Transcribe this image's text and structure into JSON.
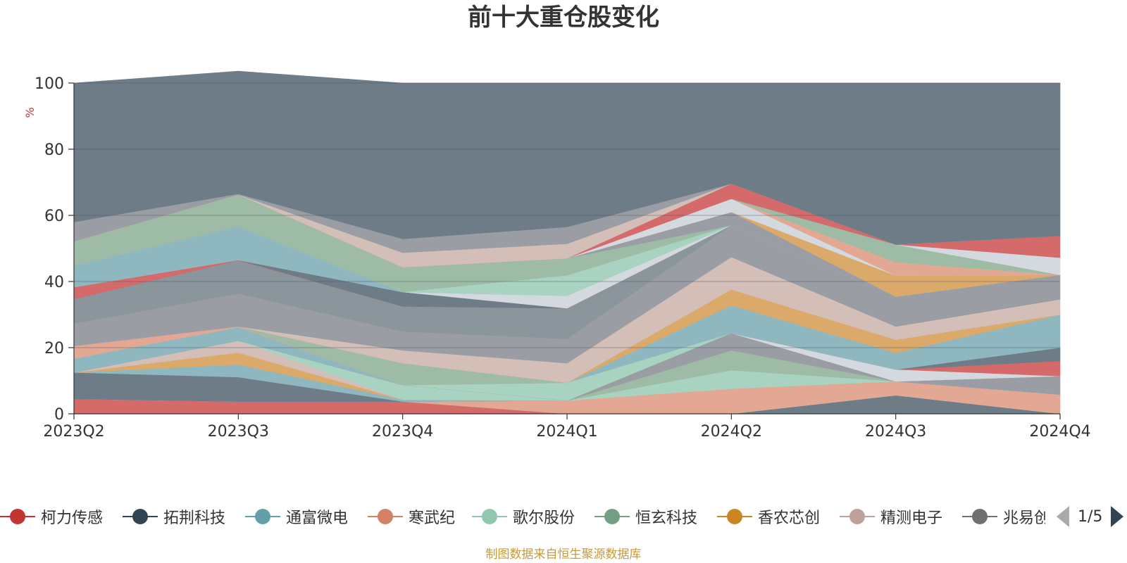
{
  "chart_data": {
    "type": "area",
    "title": "前十大重仓股变化",
    "ylabel": "%",
    "ylim": [
      0,
      100
    ],
    "yticks": [
      0,
      20,
      40,
      60,
      80,
      100
    ],
    "stacked": true,
    "grid": true,
    "legend_position": "bottom",
    "categories": [
      "2023Q2",
      "2023Q3",
      "2023Q4",
      "2024Q1",
      "2024Q2",
      "2024Q3",
      "2024Q4"
    ],
    "series": [
      {
        "color": "#d46a6a",
        "values": [
          4.5,
          3.7,
          3.7,
          0,
          0,
          0,
          0
        ]
      },
      {
        "color": "#6e7c87",
        "values": [
          0,
          0,
          0,
          0,
          0,
          5.6,
          0
        ]
      },
      {
        "color": "#8fb7c0",
        "values": [
          0,
          0,
          0,
          0,
          0,
          0,
          0
        ]
      },
      {
        "color": "#e2a893",
        "values": [
          0,
          0,
          0,
          4.0,
          7.6,
          4.2,
          5.8
        ]
      },
      {
        "color": "#a8d3c1",
        "values": [
          0,
          0,
          0,
          0,
          5.6,
          0,
          0
        ]
      },
      {
        "color": "#9dbba5",
        "values": [
          0,
          0,
          0,
          0,
          6.0,
          0,
          0
        ]
      },
      {
        "color": "#9a9da3",
        "values": [
          0,
          0,
          0,
          0,
          5.2,
          0,
          5.6
        ]
      },
      {
        "color": "#6e7c87",
        "values": [
          8.0,
          7.4,
          0,
          0,
          0,
          0,
          0
        ]
      },
      {
        "color": "#8fb7c0",
        "values": [
          0,
          3.8,
          0.6,
          0,
          0,
          0,
          0
        ]
      },
      {
        "color": "#dba96a",
        "values": [
          0,
          3.6,
          0,
          0,
          0,
          0,
          0
        ]
      },
      {
        "color": "#d3beb8",
        "values": [
          0,
          3.6,
          0,
          0,
          0,
          0,
          0
        ]
      },
      {
        "color": "#a8d3c1",
        "values": [
          0,
          0,
          4.4,
          0,
          0,
          0,
          0
        ]
      },
      {
        "color": "#9a9da3",
        "values": [
          0,
          0,
          0,
          0,
          0,
          0,
          0
        ]
      },
      {
        "color": "#d4d9df",
        "values": [
          0,
          0,
          0,
          0,
          0,
          3.6,
          0
        ]
      },
      {
        "color": "#d46a6a",
        "values": [
          0,
          0,
          0,
          0,
          0,
          0,
          4.6
        ]
      },
      {
        "color": "#6e7c87",
        "values": [
          0,
          0,
          0,
          0,
          0,
          0,
          4.0
        ]
      },
      {
        "color": "#a8d3c1",
        "values": [
          0,
          0,
          0,
          5.4,
          0,
          0,
          0
        ]
      },
      {
        "color": "#8fb7c0",
        "values": [
          4.2,
          4.1,
          0,
          0,
          8.4,
          5.0,
          10.0
        ]
      },
      {
        "color": "#e2a893",
        "values": [
          3.8,
          0.2,
          0,
          0,
          0,
          0,
          0
        ]
      },
      {
        "color": "#9dbba5",
        "values": [
          0,
          0,
          6.6,
          0,
          0,
          0,
          0
        ]
      },
      {
        "color": "#dba96a",
        "values": [
          0,
          0,
          0,
          0,
          4.8,
          4.0,
          0
        ]
      },
      {
        "color": "#d3beb8",
        "values": [
          0,
          0,
          3.9,
          5.9,
          9.8,
          4.0,
          4.6
        ]
      },
      {
        "color": "#9a9da3",
        "values": [
          6.8,
          10.0,
          5.7,
          7.4,
          9.6,
          9.0,
          7.4
        ]
      },
      {
        "color": "#8a959c",
        "values": [
          7.4,
          10.0,
          7.6,
          9.2,
          0,
          0,
          0
        ]
      },
      {
        "color": "#d46a6a",
        "values": [
          3.6,
          0.1,
          0,
          0,
          0,
          0,
          0
        ]
      },
      {
        "color": "#6e7c87",
        "values": [
          0,
          0,
          4.3,
          0,
          0,
          0,
          0
        ]
      },
      {
        "color": "#d4d9df",
        "values": [
          0,
          0,
          0,
          3.8,
          0,
          0,
          0
        ]
      },
      {
        "color": "#8fb7c0",
        "values": [
          6.5,
          10.2,
          0,
          0,
          0,
          0,
          0
        ]
      },
      {
        "color": "#a8d3c1",
        "values": [
          0,
          0,
          0,
          6.2,
          0,
          0,
          0
        ]
      },
      {
        "color": "#9dbba5",
        "values": [
          7.4,
          9.6,
          7.5,
          5.1,
          0,
          0,
          0
        ]
      },
      {
        "color": "#9a9da3",
        "values": [
          0,
          0,
          0,
          0,
          4.0,
          0,
          0
        ]
      },
      {
        "color": "#dba96a",
        "values": [
          0,
          0,
          0,
          0,
          0,
          6.4,
          0
        ]
      },
      {
        "color": "#d4d9df",
        "values": [
          0,
          0,
          0,
          0,
          4.0,
          0,
          0
        ]
      },
      {
        "color": "#e2a893",
        "values": [
          0,
          0,
          0,
          0,
          0,
          4.0,
          0
        ]
      },
      {
        "color": "#9dbba5",
        "values": [
          0,
          0,
          0,
          0,
          0,
          5.4,
          0
        ]
      },
      {
        "color": "#d4d9df",
        "values": [
          0,
          0,
          0,
          0,
          0,
          0,
          5.2
        ]
      },
      {
        "color": "#d46a6a",
        "values": [
          0,
          0,
          0,
          0,
          4.6,
          0,
          6.6
        ]
      },
      {
        "color": "#d3beb8",
        "values": [
          0,
          0,
          4.4,
          4.4,
          0,
          0,
          0
        ]
      },
      {
        "color": "#9a9da3",
        "values": [
          5.8,
          0.2,
          4.2,
          5.1,
          0,
          0,
          0
        ]
      },
      {
        "color": "#6e7c87",
        "values": [
          42.0,
          37.1,
          47.1,
          43.5,
          30.4,
          48.8,
          46.2
        ]
      }
    ],
    "legend": [
      {
        "name": "柯力传感",
        "color": "#c23531"
      },
      {
        "name": "拓荆科技",
        "color": "#2f4554"
      },
      {
        "name": "通富微电",
        "color": "#61a0a8"
      },
      {
        "name": "寒武纪",
        "color": "#d48265"
      },
      {
        "name": "歌尔股份",
        "color": "#91c7ae"
      },
      {
        "name": "恒玄科技",
        "color": "#749f83"
      },
      {
        "name": "香农芯创",
        "color": "#ca8622"
      },
      {
        "name": "精测电子",
        "color": "#bda29a"
      },
      {
        "name": "兆易创新",
        "color": "#6e7074"
      }
    ],
    "legend_page": "1/5",
    "source": "制图数据来自恒生聚源数据库"
  }
}
